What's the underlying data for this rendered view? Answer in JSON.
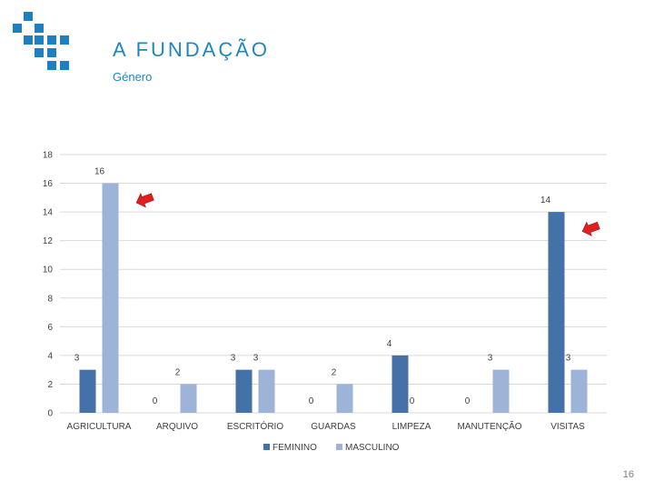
{
  "header": {
    "title": "A FUNDAÇÃO",
    "subtitle": "Género"
  },
  "page_number": "16",
  "colors": {
    "accent": "#1f86c2",
    "feminino": "#4472a8",
    "masculino": "#9db4d8",
    "arrow": "#e02020"
  },
  "chart_data": {
    "type": "bar",
    "categories": [
      "AGRICULTURA",
      "ARQUIVO",
      "ESCRITÓRIO",
      "GUARDAS",
      "LIMPEZA",
      "MANUTENÇÃO",
      "VISITAS"
    ],
    "series": [
      {
        "name": "FEMININO",
        "values": [
          3,
          0,
          3,
          0,
          4,
          0,
          14
        ]
      },
      {
        "name": "MASCULINO",
        "values": [
          16,
          2,
          3,
          2,
          0,
          3,
          3
        ]
      }
    ],
    "yticks": [
      "0",
      "2",
      "4",
      "6",
      "8",
      "10",
      "12",
      "14",
      "16",
      "18"
    ],
    "ylim": [
      0,
      18
    ],
    "grid": true,
    "legend_position": "bottom",
    "annotations": [
      {
        "type": "arrow",
        "near_category": "AGRICULTURA",
        "series": "MASCULINO"
      },
      {
        "type": "arrow",
        "near_category": "VISITAS",
        "series": "FEMININO"
      }
    ]
  }
}
